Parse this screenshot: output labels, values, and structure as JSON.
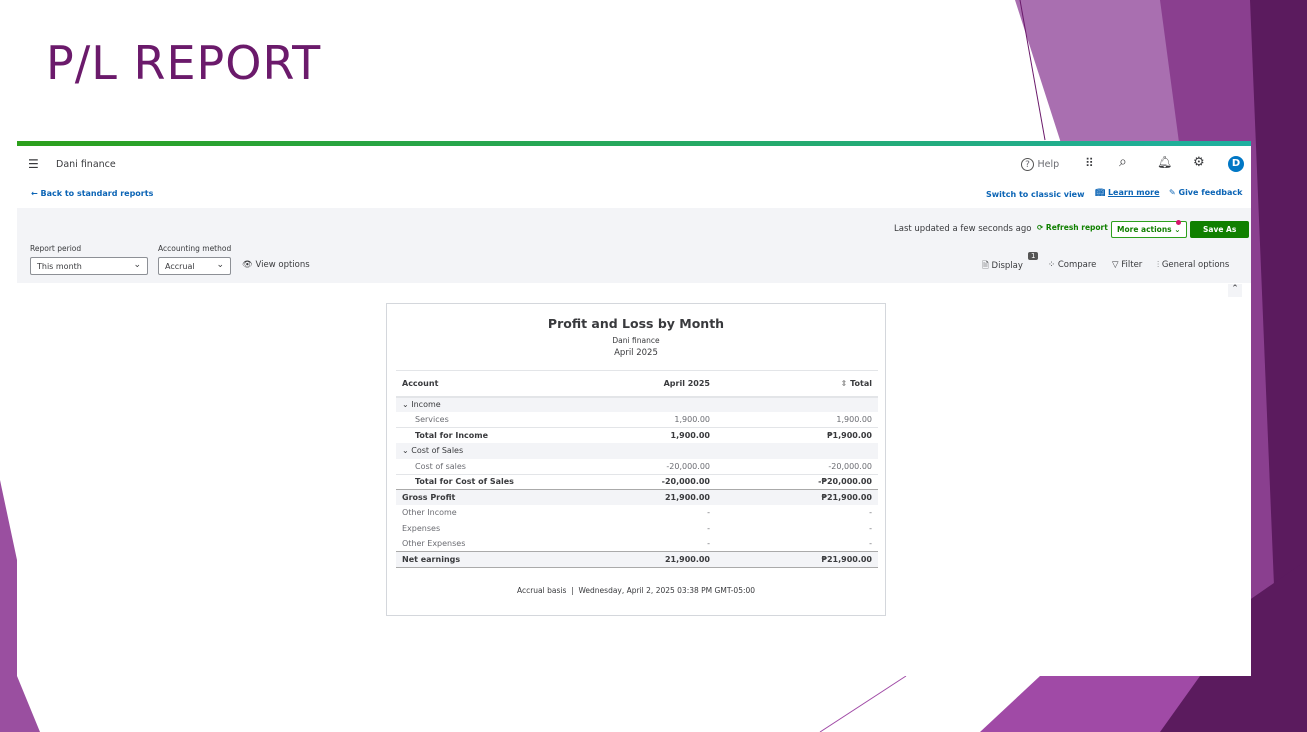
{
  "slide": {
    "title": "P/L REPORT",
    "accent": "#6b1a6b"
  },
  "header": {
    "company": "Dani finance",
    "help": "Help",
    "avatar": "D",
    "back": "Back to standard reports",
    "classic": "Switch to classic view",
    "learn": "Learn more",
    "feedback": "Give feedback"
  },
  "toolbar": {
    "last_updated": "Last updated a few seconds ago",
    "refresh": "Refresh report",
    "more": "More actions",
    "save": "Save As",
    "period_label": "Report period",
    "period_value": "This month",
    "method_label": "Accounting method",
    "method_value": "Accrual",
    "view_options": "View options",
    "display": "Display",
    "display_badge": "1",
    "compare": "Compare",
    "filter": "Filter",
    "general": "General options"
  },
  "report": {
    "title": "Profit and Loss by Month",
    "company": "Dani finance",
    "period": "April 2025",
    "columns": [
      "Account",
      "April 2025",
      "Total"
    ],
    "rows": [
      {
        "label": "Income",
        "a": "",
        "t": ""
      },
      {
        "label": "Services",
        "a": "1,900.00",
        "t": "1,900.00"
      },
      {
        "label": "Total for Income",
        "a": "1,900.00",
        "t": "₱1,900.00"
      },
      {
        "label": "Cost of Sales",
        "a": "",
        "t": ""
      },
      {
        "label": "Cost of sales",
        "a": "-20,000.00",
        "t": "-20,000.00"
      },
      {
        "label": "Total for Cost of Sales",
        "a": "-20,000.00",
        "t": "-₱20,000.00"
      },
      {
        "label": "Gross Profit",
        "a": "21,900.00",
        "t": "₱21,900.00"
      },
      {
        "label": "Other Income",
        "a": "-",
        "t": "-"
      },
      {
        "label": "Expenses",
        "a": "-",
        "t": "-"
      },
      {
        "label": "Other Expenses",
        "a": "-",
        "t": "-"
      },
      {
        "label": "Net earnings",
        "a": "21,900.00",
        "t": "₱21,900.00"
      }
    ],
    "footer_basis": "Accrual basis",
    "footer_date": "Wednesday, April 2, 2025 03:38 PM GMT-05:00"
  }
}
